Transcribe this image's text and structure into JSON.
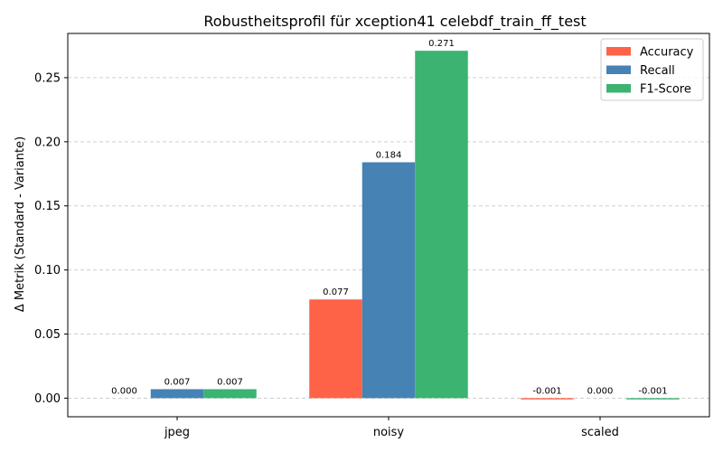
{
  "chart_data": {
    "type": "bar",
    "title": "Robustheitsprofil für xception41 celebdf_train_ff_test",
    "xlabel": "",
    "ylabel": "Δ Metrik (Standard - Variante)",
    "categories": [
      "jpeg",
      "noisy",
      "scaled"
    ],
    "series": [
      {
        "name": "Accuracy",
        "color": "#FF6347",
        "values": [
          0.0,
          0.077,
          -0.001
        ],
        "labels": [
          "0.000",
          "0.077",
          "-0.001"
        ]
      },
      {
        "name": "Recall",
        "color": "#4682B4",
        "values": [
          0.007,
          0.184,
          0.0
        ],
        "labels": [
          "0.007",
          "0.184",
          "0.000"
        ]
      },
      {
        "name": "F1-Score",
        "color": "#3CB371",
        "values": [
          0.007,
          0.271,
          -0.001
        ],
        "labels": [
          "0.007",
          "0.271",
          "-0.001"
        ]
      }
    ],
    "ylim": [
      -0.0145,
      0.2845
    ],
    "yticks": [
      0.0,
      0.05,
      0.1,
      0.15,
      0.2,
      0.25
    ],
    "ytick_labels": [
      "0.00",
      "0.05",
      "0.10",
      "0.15",
      "0.20",
      "0.25"
    ],
    "grid": "y-dashed",
    "legend_position": "top-right"
  }
}
